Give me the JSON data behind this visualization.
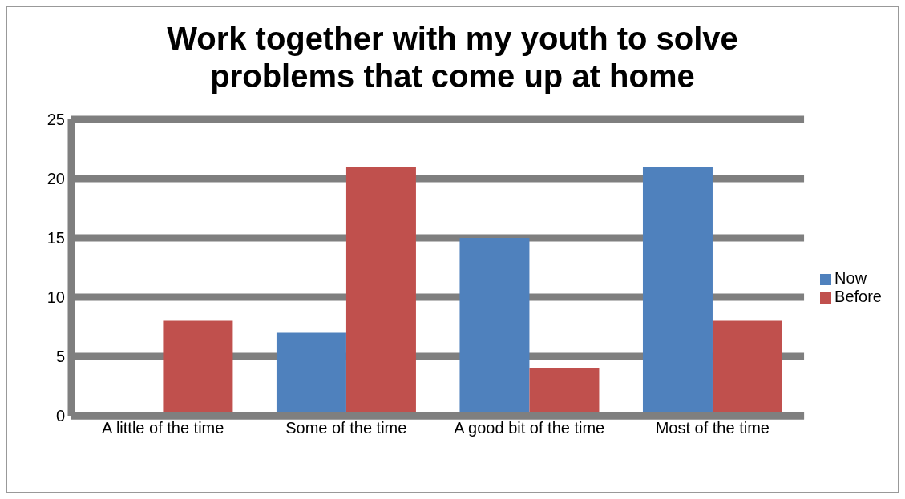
{
  "chart_data": {
    "type": "bar",
    "title": "Work together with my youth to solve problems that come up at home",
    "categories": [
      "A little of the time",
      "Some of the time",
      "A good bit of the time",
      "Most of the time"
    ],
    "series": [
      {
        "name": "Now",
        "color": "#4f81bd",
        "values": [
          0,
          7,
          15,
          21
        ]
      },
      {
        "name": "Before",
        "color": "#c0504d",
        "values": [
          8,
          21,
          4,
          8
        ]
      }
    ],
    "ylim": [
      0,
      25
    ],
    "yticks": [
      0,
      5,
      10,
      15,
      20,
      25
    ],
    "grid": "y",
    "legend": "right"
  }
}
